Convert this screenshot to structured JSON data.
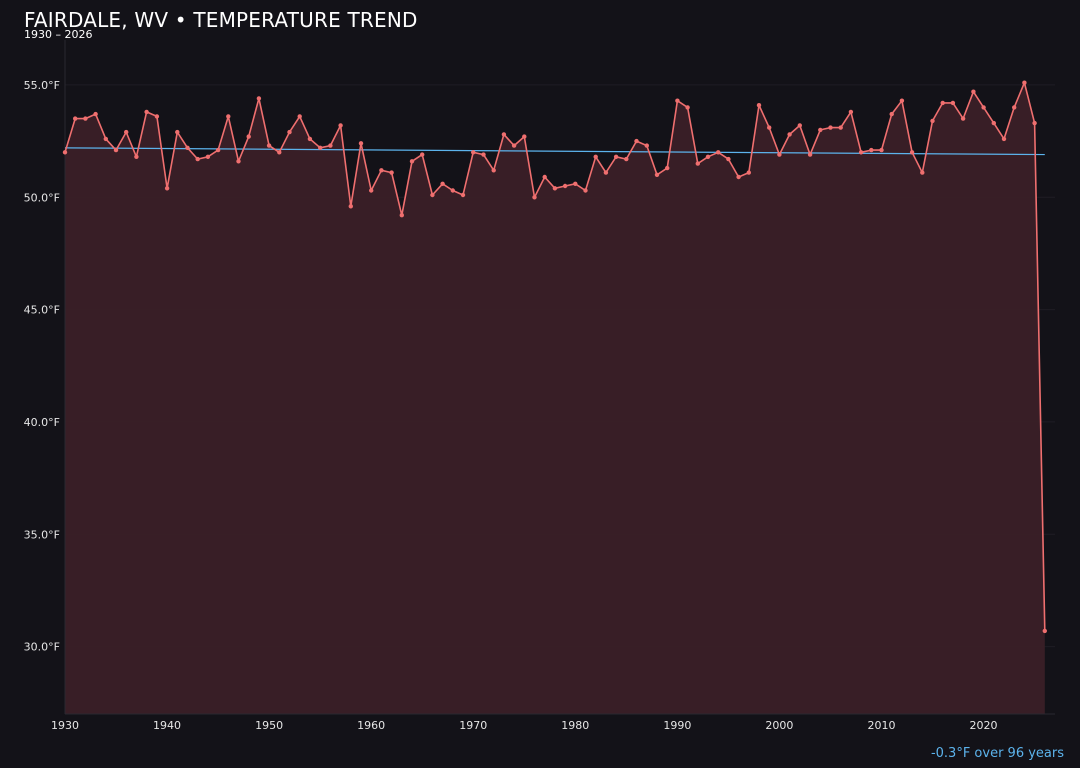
{
  "title": "FAIRDALE, WV • TEMPERATURE TREND",
  "subtitle": "1930 – 2026",
  "trend_note": "-0.3°F over 96 years",
  "colors": {
    "background": "#131218",
    "line": "#ef6f6f",
    "area": "#3a2027",
    "trend": "#5cb3ec",
    "grid": "#1f1d24",
    "text": "#e6e6e6"
  },
  "chart_data": {
    "type": "line",
    "title": "FAIRDALE, WV • TEMPERATURE TREND",
    "subtitle": "1930 – 2026",
    "xlabel": "",
    "ylabel": "",
    "xlim": [
      1930,
      2027
    ],
    "ylim": [
      27,
      57
    ],
    "x_ticks": [
      1930,
      1940,
      1950,
      1960,
      1970,
      1980,
      1990,
      2000,
      2010,
      2020
    ],
    "x_tick_labels": [
      "1930",
      "1940",
      "1950",
      "1960",
      "1970",
      "1980",
      "1990",
      "2000",
      "2010",
      "2020"
    ],
    "y_ticks": [
      30,
      35,
      40,
      45,
      50,
      55
    ],
    "y_tick_labels": [
      "30.0°F",
      "35.0°F",
      "40.0°F",
      "45.0°F",
      "50.0°F",
      "55.0°F"
    ],
    "grid": true,
    "x": [
      1930,
      1931,
      1932,
      1933,
      1934,
      1935,
      1936,
      1937,
      1938,
      1939,
      1940,
      1941,
      1942,
      1943,
      1944,
      1945,
      1946,
      1947,
      1948,
      1949,
      1950,
      1951,
      1952,
      1953,
      1954,
      1955,
      1956,
      1957,
      1958,
      1959,
      1960,
      1961,
      1962,
      1963,
      1964,
      1965,
      1966,
      1967,
      1968,
      1969,
      1970,
      1971,
      1972,
      1973,
      1974,
      1975,
      1976,
      1977,
      1978,
      1979,
      1980,
      1981,
      1982,
      1983,
      1984,
      1985,
      1986,
      1987,
      1988,
      1989,
      1990,
      1991,
      1992,
      1993,
      1994,
      1995,
      1996,
      1997,
      1998,
      1999,
      2000,
      2001,
      2002,
      2003,
      2004,
      2005,
      2006,
      2007,
      2008,
      2009,
      2010,
      2011,
      2012,
      2013,
      2014,
      2015,
      2016,
      2017,
      2018,
      2019,
      2020,
      2021,
      2022,
      2023,
      2024,
      2025,
      2026
    ],
    "series": [
      {
        "values": [
          52.0,
          53.5,
          53.5,
          53.7,
          52.6,
          52.1,
          52.9,
          51.8,
          53.8,
          53.6,
          50.4,
          52.9,
          52.2,
          51.7,
          51.8,
          52.1,
          53.6,
          51.6,
          52.7,
          54.4,
          52.3,
          52.0,
          52.9,
          53.6,
          52.6,
          52.2,
          52.3,
          53.2,
          49.6,
          52.4,
          50.3,
          51.2,
          51.1,
          49.2,
          51.6,
          51.9,
          50.1,
          50.6,
          50.3,
          50.1,
          52.0,
          51.9,
          51.2,
          52.8,
          52.3,
          52.7,
          50.0,
          50.9,
          50.4,
          50.5,
          50.6,
          50.3,
          51.8,
          51.1,
          51.8,
          51.7,
          52.5,
          52.3,
          51.0,
          51.3,
          54.3,
          54.0,
          51.5,
          51.8,
          52.0,
          51.7,
          50.9,
          51.1,
          54.1,
          53.1,
          51.9,
          52.8,
          53.2,
          51.9,
          53.0,
          53.1,
          53.1,
          53.8,
          52.0,
          52.1,
          52.1,
          53.7,
          54.3,
          52.0,
          51.1,
          53.4,
          54.2,
          54.2,
          53.5,
          54.7,
          54.0,
          53.3,
          52.6,
          54.0,
          55.1,
          53.3,
          30.7
        ]
      },
      {
        "name": "",
        "type": "trend",
        "x": [
          1930,
          2026
        ],
        "values": [
          52.2,
          51.9
        ]
      }
    ]
  }
}
